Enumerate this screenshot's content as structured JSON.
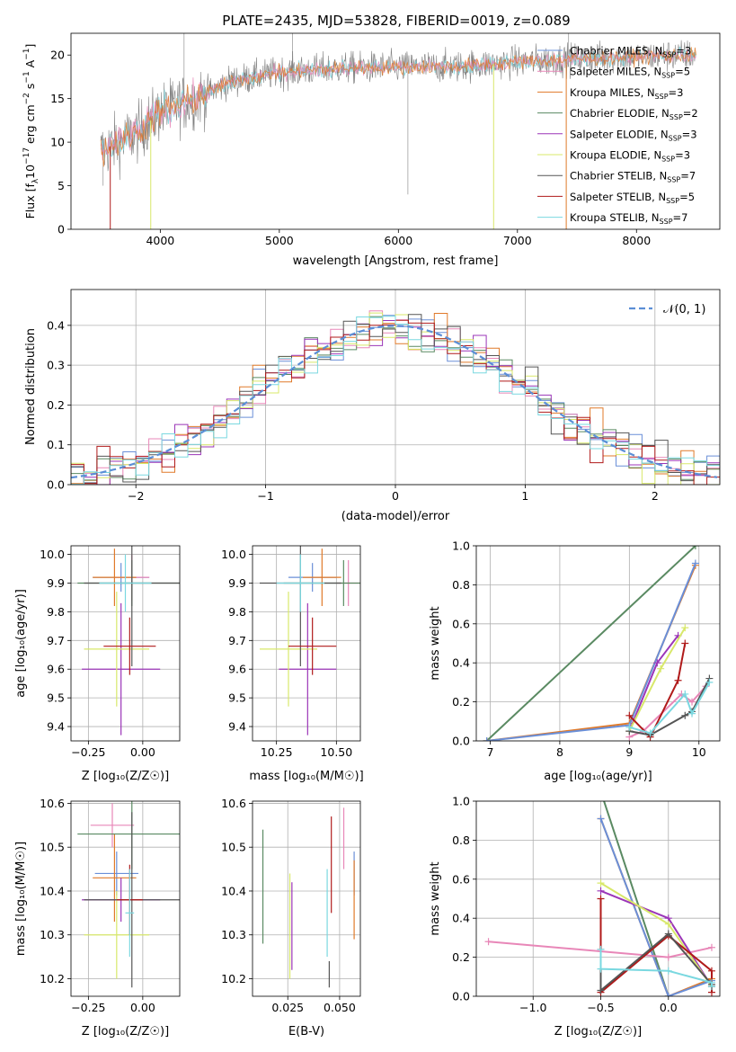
{
  "figure_title": "PLATE=2435, MJD=53828, FIBERID=0019, z=0.089",
  "colors": {
    "Chabrier MILES": "#6a8fd8",
    "Salpeter MILES": "#e887b8",
    "Kroupa MILES": "#e07a2a",
    "Chabrier ELODIE": "#5a8a62",
    "Salpeter ELODIE": "#9b35b8",
    "Kroupa ELODIE": "#d8e86a",
    "Chabrier STELIB": "#555555",
    "Salpeter STELIB": "#b01a1a",
    "Kroupa STELIB": "#7ad8e0",
    "data": "#808080",
    "normal": "#5b8ed6"
  },
  "chart_data": [
    {
      "id": "spectrum",
      "type": "line",
      "title": "PLATE=2435, MJD=53828, FIBERID=0019, z=0.089",
      "xlabel": "wavelength [Angstrom, rest frame]",
      "ylabel_main": "Flux [f",
      "ylabel_sub": "λ",
      "ylabel_rest": "10",
      "ylabel_sup": "−17",
      "ylabel_tail": " erg cm",
      "ylabel_tail_sup": "−2",
      "ylabel_tail2": " s",
      "ylabel_tail2_sup": "−1",
      "ylabel_tail3": " A",
      "ylabel_tail3_sup": "−1",
      "ylabel_end": "]",
      "xlim": [
        3250,
        8700
      ],
      "ylim": [
        0,
        22.5
      ],
      "xticks": [
        4000,
        5000,
        6000,
        7000,
        8000
      ],
      "yticks": [
        0,
        5,
        10,
        15,
        20
      ],
      "legend": [
        {
          "name": "Chabrier MILES",
          "nssp": "3"
        },
        {
          "name": "Salpeter MILES",
          "nssp": "5"
        },
        {
          "name": "Kroupa MILES",
          "nssp": "3"
        },
        {
          "name": "Chabrier ELODIE",
          "nssp": "2"
        },
        {
          "name": "Salpeter ELODIE",
          "nssp": "3"
        },
        {
          "name": "Kroupa ELODIE",
          "nssp": "3"
        },
        {
          "name": "Chabrier STELIB",
          "nssp": "7"
        },
        {
          "name": "Salpeter STELIB",
          "nssp": "5"
        },
        {
          "name": "Kroupa STELIB",
          "nssp": "7"
        }
      ],
      "legend_prefix": "N",
      "legend_sub": "SSP",
      "continuum": [
        [
          3500,
          9
        ],
        [
          3800,
          11
        ],
        [
          4000,
          13.5
        ],
        [
          4300,
          15
        ],
        [
          4600,
          17
        ],
        [
          5000,
          18
        ],
        [
          5500,
          18.5
        ],
        [
          6000,
          18.6
        ],
        [
          6500,
          18.7
        ],
        [
          7000,
          19.2
        ],
        [
          7400,
          19.5
        ],
        [
          8000,
          19.8
        ],
        [
          8500,
          20
        ]
      ],
      "data_range": [
        3500,
        8500
      ],
      "model_dips": [
        {
          "model": "Kroupa ELODIE",
          "x": 3920,
          "to": 0
        },
        {
          "model": "Kroupa ELODIE",
          "x": 6800,
          "to": 0
        },
        {
          "model": "Kroupa MILES",
          "x": 7410,
          "to": 0
        },
        {
          "model": "Salpeter STELIB",
          "x": 3580,
          "to": 0
        }
      ]
    },
    {
      "id": "residual-histogram",
      "type": "histogram",
      "xlabel": "(data-model)/error",
      "ylabel": "Normed distribution",
      "xlim": [
        -2.5,
        2.5
      ],
      "ylim": [
        0,
        0.49
      ],
      "xticks": [
        -2,
        -1,
        0,
        1,
        2
      ],
      "yticks": [
        0.0,
        0.1,
        0.2,
        0.3,
        0.4
      ],
      "legend": "𝒩(0, 1)",
      "bin_width": 0.1,
      "grid": true
    },
    {
      "id": "age-vs-z",
      "type": "errorbar",
      "xlabel": "Z [log₁₀(Z/Z☉)]",
      "ylabel": "age  [log₁₀(age/yr)]",
      "xlim": [
        -0.33,
        0.17
      ],
      "ylim": [
        9.35,
        10.03
      ],
      "xticks": [
        -0.25,
        0.0
      ],
      "xtick_labels": [
        "−0.25",
        "0.00"
      ],
      "yticks": [
        9.4,
        9.5,
        9.6,
        9.7,
        9.8,
        9.9,
        10.0
      ],
      "points": [
        {
          "model": "Chabrier MILES",
          "x": -0.1,
          "xerr": 0.13,
          "y": 9.92,
          "yerr": 0.05
        },
        {
          "model": "Salpeter MILES",
          "x": -0.05,
          "xerr": 0.08,
          "y": 9.92,
          "yerr": 0.08
        },
        {
          "model": "Kroupa MILES",
          "x": -0.13,
          "xerr": 0.1,
          "y": 9.92,
          "yerr": 0.1
        },
        {
          "model": "Chabrier ELODIE",
          "x": -0.05,
          "xerr": 0.25,
          "y": 9.9,
          "yerr": 0.08
        },
        {
          "model": "Salpeter ELODIE",
          "x": -0.1,
          "xerr": 0.18,
          "y": 9.6,
          "yerr": 0.23
        },
        {
          "model": "Kroupa ELODIE",
          "x": -0.12,
          "xerr": 0.15,
          "y": 9.67,
          "yerr": 0.2
        },
        {
          "model": "Chabrier STELIB",
          "x": -0.05,
          "xerr": 0.22,
          "y": 9.9,
          "yerr": 0.29
        },
        {
          "model": "Salpeter STELIB",
          "x": -0.06,
          "xerr": 0.12,
          "y": 9.68,
          "yerr": 0.1
        },
        {
          "model": "Kroupa STELIB",
          "x": -0.08,
          "xerr": 0.12,
          "y": 9.9,
          "yerr": 0.1
        }
      ]
    },
    {
      "id": "age-vs-mass",
      "type": "errorbar",
      "xlabel": "mass [log₁₀(M/M☉)]",
      "xlim": [
        10.15,
        10.6
      ],
      "ylim": [
        9.35,
        10.03
      ],
      "xticks": [
        10.25,
        10.5
      ],
      "xtick_labels": [
        "10.25",
        "10.50"
      ],
      "yticks": [
        9.4,
        9.5,
        9.6,
        9.7,
        9.8,
        9.9,
        10.0
      ],
      "points": [
        {
          "model": "Chabrier MILES",
          "x": 10.4,
          "xerr": 0.1,
          "y": 9.92,
          "yerr": 0.05
        },
        {
          "model": "Salpeter MILES",
          "x": 10.55,
          "xerr": 0.05,
          "y": 9.9,
          "yerr": 0.08
        },
        {
          "model": "Kroupa MILES",
          "x": 10.44,
          "xerr": 0.08,
          "y": 9.92,
          "yerr": 0.1
        },
        {
          "model": "Chabrier ELODIE",
          "x": 10.53,
          "xerr": 0.25,
          "y": 9.9,
          "yerr": 0.08
        },
        {
          "model": "Salpeter ELODIE",
          "x": 10.38,
          "xerr": 0.12,
          "y": 9.6,
          "yerr": 0.23
        },
        {
          "model": "Kroupa ELODIE",
          "x": 10.3,
          "xerr": 0.12,
          "y": 9.67,
          "yerr": 0.2
        },
        {
          "model": "Chabrier STELIB",
          "x": 10.35,
          "xerr": 0.17,
          "y": 9.9,
          "yerr": 0.29
        },
        {
          "model": "Salpeter STELIB",
          "x": 10.4,
          "xerr": 0.1,
          "y": 9.68,
          "yerr": 0.1
        },
        {
          "model": "Kroupa STELIB",
          "x": 10.35,
          "xerr": 0.1,
          "y": 9.9,
          "yerr": 0.1
        }
      ]
    },
    {
      "id": "mass-weight-vs-age",
      "type": "line",
      "xlabel": "age  [log₁₀(age/yr)]",
      "ylabel": "mass weight",
      "xlim": [
        6.8,
        10.3
      ],
      "ylim": [
        0,
        1
      ],
      "xticks": [
        7,
        8,
        9,
        10
      ],
      "yticks": [
        0.0,
        0.2,
        0.4,
        0.6,
        0.8,
        1.0
      ],
      "series": [
        {
          "model": "Chabrier ELODIE",
          "x": [
            6.95,
            9.95
          ],
          "y": [
            0.0,
            1.0
          ]
        },
        {
          "model": "Kroupa MILES",
          "x": [
            6.95,
            9.0,
            9.95
          ],
          "y": [
            0.0,
            0.09,
            0.9
          ]
        },
        {
          "model": "Chabrier MILES",
          "x": [
            6.95,
            9.0,
            9.95
          ],
          "y": [
            0.0,
            0.08,
            0.91
          ]
        },
        {
          "model": "Salpeter MILES",
          "x": [
            9.0,
            9.2,
            9.75,
            9.9,
            10.1
          ],
          "y": [
            0.02,
            0.05,
            0.24,
            0.2,
            0.28
          ]
        },
        {
          "model": "Salpeter ELODIE",
          "x": [
            9.0,
            9.4,
            9.7
          ],
          "y": [
            0.05,
            0.4,
            0.54
          ]
        },
        {
          "model": "Kroupa ELODIE",
          "x": [
            9.0,
            9.45,
            9.8
          ],
          "y": [
            0.05,
            0.37,
            0.58
          ]
        },
        {
          "model": "Salpeter STELIB",
          "x": [
            9.0,
            9.3,
            9.7,
            9.8
          ],
          "y": [
            0.13,
            0.02,
            0.31,
            0.5
          ]
        },
        {
          "model": "Chabrier STELIB",
          "x": [
            9.0,
            9.3,
            9.8,
            9.9,
            10.15
          ],
          "y": [
            0.05,
            0.03,
            0.13,
            0.15,
            0.32
          ]
        },
        {
          "model": "Kroupa STELIB",
          "x": [
            9.0,
            9.3,
            9.8,
            9.9,
            10.15
          ],
          "y": [
            0.07,
            0.04,
            0.24,
            0.14,
            0.3
          ]
        }
      ]
    },
    {
      "id": "mass-vs-z",
      "type": "errorbar",
      "xlabel": "Z [log₁₀(Z/Z☉)]",
      "ylabel": "mass [log₁₀(M/M☉)]",
      "xlim": [
        -0.33,
        0.17
      ],
      "ylim": [
        10.16,
        10.605
      ],
      "xticks": [
        -0.25,
        0.0
      ],
      "xtick_labels": [
        "−0.25",
        "0.00"
      ],
      "yticks": [
        10.2,
        10.3,
        10.4,
        10.5,
        10.6
      ],
      "points": [
        {
          "model": "Chabrier MILES",
          "x": -0.12,
          "xerr": 0.1,
          "y": 10.44,
          "yerr": 0.05
        },
        {
          "model": "Salpeter MILES",
          "x": -0.14,
          "xerr": 0.1,
          "y": 10.55,
          "yerr": 0.05
        },
        {
          "model": "Kroupa MILES",
          "x": -0.13,
          "xerr": 0.1,
          "y": 10.43,
          "yerr": 0.1
        },
        {
          "model": "Chabrier ELODIE",
          "x": -0.05,
          "xerr": 0.25,
          "y": 10.53,
          "yerr": 0.08
        },
        {
          "model": "Salpeter ELODIE",
          "x": -0.1,
          "xerr": 0.18,
          "y": 10.38,
          "yerr": 0.05
        },
        {
          "model": "Kroupa ELODIE",
          "x": -0.12,
          "xerr": 0.15,
          "y": 10.3,
          "yerr": 0.1
        },
        {
          "model": "Chabrier STELIB",
          "x": -0.05,
          "xerr": 0.22,
          "y": 10.38,
          "yerr": 0.2
        },
        {
          "model": "Salpeter STELIB",
          "x": -0.06,
          "xerr": 0.06,
          "y": 10.38,
          "yerr": 0.08
        },
        {
          "model": "Kroupa STELIB",
          "x": -0.06,
          "xerr": 0.02,
          "y": 10.35,
          "yerr": 0.1
        }
      ]
    },
    {
      "id": "mass-vs-ebv",
      "type": "errorbar",
      "xlabel": "E(B-V)",
      "xlim": [
        0.008,
        0.06
      ],
      "ylim": [
        10.16,
        10.605
      ],
      "xticks": [
        0.025,
        0.05
      ],
      "xtick_labels": [
        "0.025",
        "0.050"
      ],
      "yticks": [
        10.2,
        10.3,
        10.4,
        10.5,
        10.6
      ],
      "points": [
        {
          "model": "Chabrier MILES",
          "x": 0.057,
          "xerr": 0,
          "y": 10.44,
          "yerr": 0.05
        },
        {
          "model": "Salpeter MILES",
          "x": 0.052,
          "xerr": 0,
          "y": 10.52,
          "yerr": 0.07
        },
        {
          "model": "Kroupa MILES",
          "x": 0.057,
          "xerr": 0,
          "y": 10.38,
          "yerr": 0.09
        },
        {
          "model": "Chabrier ELODIE",
          "x": 0.013,
          "xerr": 0,
          "y": 10.41,
          "yerr": 0.13
        },
        {
          "model": "Salpeter ELODIE",
          "x": 0.027,
          "xerr": 0,
          "y": 10.32,
          "yerr": 0.1
        },
        {
          "model": "Kroupa ELODIE",
          "x": 0.026,
          "xerr": 0,
          "y": 10.32,
          "yerr": 0.12
        },
        {
          "model": "Chabrier STELIB",
          "x": 0.045,
          "xerr": 0,
          "y": 10.21,
          "yerr": 0.03
        },
        {
          "model": "Salpeter STELIB",
          "x": 0.046,
          "xerr": 0,
          "y": 10.46,
          "yerr": 0.11
        },
        {
          "model": "Kroupa STELIB",
          "x": 0.044,
          "xerr": 0,
          "y": 10.35,
          "yerr": 0.1
        }
      ]
    },
    {
      "id": "mass-weight-vs-z",
      "type": "line",
      "xlabel": "Z [log₁₀(Z/Z☉)]",
      "ylabel": "mass weight",
      "xlim": [
        -1.42,
        0.38
      ],
      "ylim": [
        0,
        1
      ],
      "xticks": [
        -1.0,
        -0.5,
        0.0
      ],
      "xtick_labels": [
        "−1.0",
        "−0.5",
        "0.0"
      ],
      "yticks": [
        0.0,
        0.2,
        0.4,
        0.6,
        0.8,
        1.0
      ],
      "series": [
        {
          "model": "Chabrier ELODIE",
          "x": [
            -0.5,
            0.0
          ],
          "y": [
            1.05,
            0.0
          ]
        },
        {
          "model": "Kroupa MILES",
          "x": [
            -0.5,
            0.0,
            0.32
          ],
          "y": [
            0.91,
            0.0,
            0.09
          ]
        },
        {
          "model": "Chabrier MILES",
          "x": [
            -0.5,
            0.0,
            0.32
          ],
          "y": [
            0.91,
            0.0,
            0.08
          ]
        },
        {
          "model": "Salpeter MILES",
          "x": [
            -1.33,
            0.0,
            0.32
          ],
          "y": [
            0.28,
            0.2,
            0.25
          ]
        },
        {
          "model": "Salpeter ELODIE",
          "x": [
            -0.5,
            0.0,
            0.32
          ],
          "y": [
            0.54,
            0.4,
            0.05
          ]
        },
        {
          "model": "Kroupa ELODIE",
          "x": [
            -0.5,
            0.0,
            0.32
          ],
          "y": [
            0.58,
            0.37,
            0.05
          ]
        },
        {
          "model": "Salpeter STELIB",
          "x": [
            -0.5,
            -0.5,
            0.0,
            0.32,
            0.32
          ],
          "y": [
            0.5,
            0.02,
            0.31,
            0.13,
            0.02
          ]
        },
        {
          "model": "Chabrier STELIB",
          "x": [
            -0.5,
            -0.5,
            0.0,
            0.32,
            0.32
          ],
          "y": [
            0.24,
            0.03,
            0.32,
            0.06,
            0.05
          ]
        },
        {
          "model": "Kroupa STELIB",
          "x": [
            -0.5,
            -0.5,
            0.0,
            0.32,
            0.32
          ],
          "y": [
            0.24,
            0.14,
            0.13,
            0.07,
            0.05
          ]
        }
      ]
    }
  ]
}
